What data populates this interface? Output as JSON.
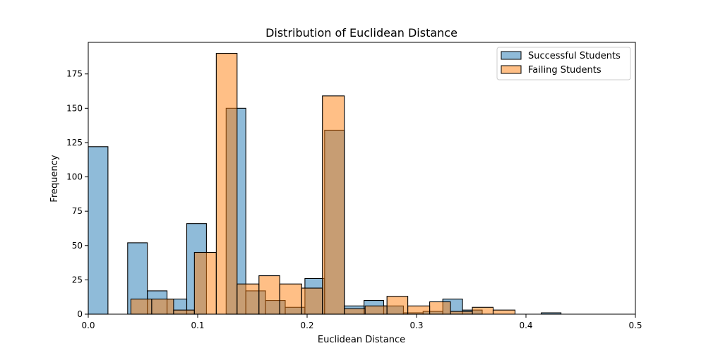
{
  "chart_data": {
    "type": "bar",
    "title": "Distribution of Euclidean Distance",
    "xlabel": "Euclidean Distance",
    "ylabel": "Frequency",
    "xlim": [
      0.0,
      0.5
    ],
    "ylim": [
      0,
      198
    ],
    "x_ticks": [
      {
        "value": 0.0,
        "label": "0.0"
      },
      {
        "value": 0.1,
        "label": "0.1"
      },
      {
        "value": 0.2,
        "label": "0.2"
      },
      {
        "value": 0.3,
        "label": "0.3"
      },
      {
        "value": 0.4,
        "label": "0.4"
      },
      {
        "value": 0.5,
        "label": "0.5"
      }
    ],
    "y_ticks": [
      {
        "value": 0,
        "label": "0"
      },
      {
        "value": 25,
        "label": "25"
      },
      {
        "value": 50,
        "label": "50"
      },
      {
        "value": 75,
        "label": "75"
      },
      {
        "value": 100,
        "label": "100"
      },
      {
        "value": 125,
        "label": "125"
      },
      {
        "value": 150,
        "label": "150"
      },
      {
        "value": 175,
        "label": "175"
      }
    ],
    "legend_position": "top-right",
    "grid": false,
    "series": [
      {
        "name": "Successful Students",
        "color": "#1f77b4",
        "fill_opacity": 0.5,
        "bins": [
          {
            "x0": 0.0,
            "x1": 0.018,
            "count": 122
          },
          {
            "x0": 0.036,
            "x1": 0.054,
            "count": 52
          },
          {
            "x0": 0.054,
            "x1": 0.072,
            "count": 17
          },
          {
            "x0": 0.072,
            "x1": 0.09,
            "count": 11
          },
          {
            "x0": 0.09,
            "x1": 0.108,
            "count": 66
          },
          {
            "x0": 0.126,
            "x1": 0.144,
            "count": 150
          },
          {
            "x0": 0.144,
            "x1": 0.162,
            "count": 17
          },
          {
            "x0": 0.162,
            "x1": 0.18,
            "count": 10
          },
          {
            "x0": 0.18,
            "x1": 0.198,
            "count": 5
          },
          {
            "x0": 0.198,
            "x1": 0.216,
            "count": 26
          },
          {
            "x0": 0.216,
            "x1": 0.234,
            "count": 134
          },
          {
            "x0": 0.234,
            "x1": 0.252,
            "count": 6
          },
          {
            "x0": 0.252,
            "x1": 0.27,
            "count": 10
          },
          {
            "x0": 0.27,
            "x1": 0.288,
            "count": 6
          },
          {
            "x0": 0.288,
            "x1": 0.306,
            "count": 1
          },
          {
            "x0": 0.306,
            "x1": 0.324,
            "count": 2
          },
          {
            "x0": 0.324,
            "x1": 0.342,
            "count": 11
          },
          {
            "x0": 0.342,
            "x1": 0.36,
            "count": 3
          },
          {
            "x0": 0.414,
            "x1": 0.432,
            "count": 1
          }
        ]
      },
      {
        "name": "Failing Students",
        "color": "#ff7f0e",
        "fill_opacity": 0.5,
        "bins": [
          {
            "x0": 0.039,
            "x1": 0.058,
            "count": 11
          },
          {
            "x0": 0.058,
            "x1": 0.078,
            "count": 11
          },
          {
            "x0": 0.078,
            "x1": 0.097,
            "count": 3
          },
          {
            "x0": 0.097,
            "x1": 0.117,
            "count": 45
          },
          {
            "x0": 0.117,
            "x1": 0.136,
            "count": 190
          },
          {
            "x0": 0.136,
            "x1": 0.156,
            "count": 22
          },
          {
            "x0": 0.156,
            "x1": 0.175,
            "count": 28
          },
          {
            "x0": 0.175,
            "x1": 0.195,
            "count": 22
          },
          {
            "x0": 0.195,
            "x1": 0.214,
            "count": 19
          },
          {
            "x0": 0.214,
            "x1": 0.234,
            "count": 159
          },
          {
            "x0": 0.234,
            "x1": 0.253,
            "count": 4
          },
          {
            "x0": 0.253,
            "x1": 0.273,
            "count": 6
          },
          {
            "x0": 0.273,
            "x1": 0.292,
            "count": 13
          },
          {
            "x0": 0.292,
            "x1": 0.312,
            "count": 6
          },
          {
            "x0": 0.312,
            "x1": 0.331,
            "count": 9
          },
          {
            "x0": 0.331,
            "x1": 0.351,
            "count": 2
          },
          {
            "x0": 0.351,
            "x1": 0.37,
            "count": 5
          },
          {
            "x0": 0.37,
            "x1": 0.39,
            "count": 3
          }
        ]
      }
    ]
  }
}
